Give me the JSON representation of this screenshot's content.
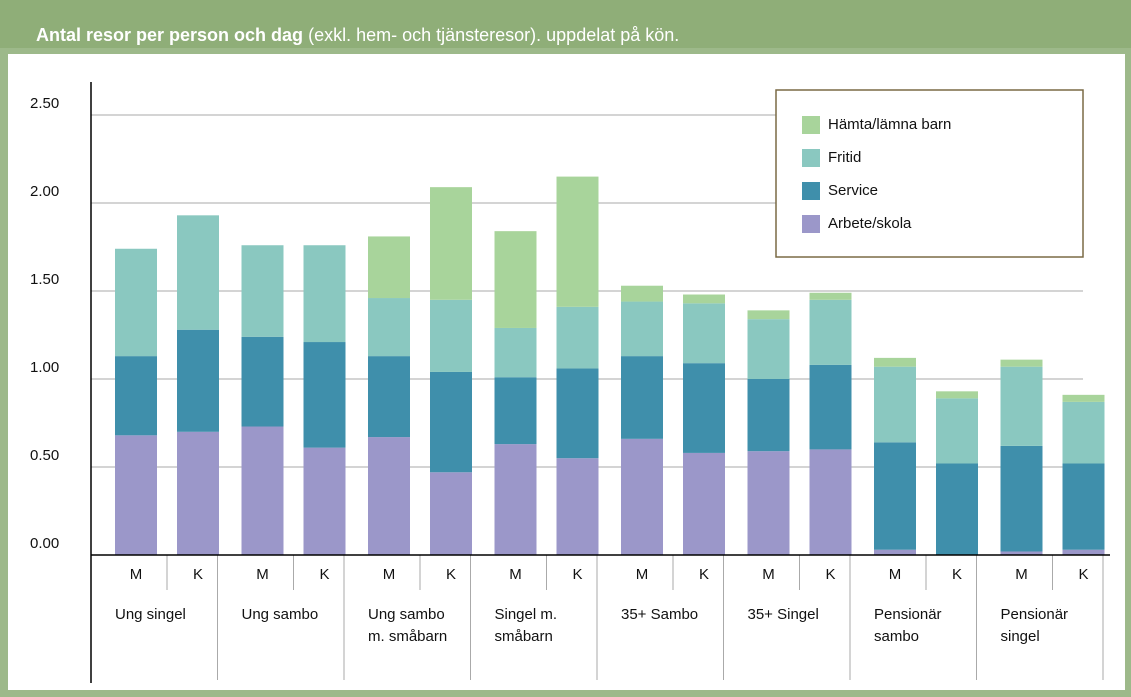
{
  "chart_data": {
    "type": "stacked_bar",
    "title": "Antal resor per person och dag",
    "subtitle": "(exkl. hem- och tjänsteresor). uppdelat på kön.",
    "categories": [
      "M",
      "K",
      "M",
      "K",
      "M",
      "K",
      "M",
      "K",
      "M",
      "K",
      "M",
      "K",
      "M",
      "K",
      "M",
      "K"
    ],
    "groups": [
      [
        "Ung singel"
      ],
      [
        "Ung sambo"
      ],
      [
        "Ung sambo",
        "m. småbarn"
      ],
      [
        "Singel m.",
        "småbarn"
      ],
      [
        "35+ Sambo"
      ],
      [
        "35+ Singel"
      ],
      [
        "Pensionär",
        "sambo"
      ],
      [
        "Pensionär",
        "singel"
      ]
    ],
    "ylim": [
      0,
      2.75
    ],
    "yticks": [
      {
        "value": 0,
        "label": "0.00"
      },
      {
        "value": 0.5,
        "label": "0.50"
      },
      {
        "value": 1,
        "label": "1.00"
      },
      {
        "value": 1.5,
        "label": "1.50"
      },
      {
        "value": 2,
        "label": "2.00"
      },
      {
        "value": 2.5,
        "label": "2.50"
      }
    ],
    "grid": true,
    "legend": "upper right",
    "series": [
      {
        "name": "Arbete/skola",
        "color": "#9b97c9",
        "values": [
          0.68,
          0.7,
          0.73,
          0.61,
          0.67,
          0.47,
          0.63,
          0.55,
          0.66,
          0.58,
          0.59,
          0.6,
          0.03,
          0,
          0.02,
          0.03
        ]
      },
      {
        "name": "Service",
        "color": "#3f8fab",
        "values": [
          0.45,
          0.58,
          0.51,
          0.6,
          0.46,
          0.57,
          0.38,
          0.51,
          0.47,
          0.51,
          0.41,
          0.48,
          0.61,
          0.52,
          0.6,
          0.49
        ]
      },
      {
        "name": "Fritid",
        "color": "#8ac8c0",
        "values": [
          0.61,
          0.65,
          0.52,
          0.55,
          0.33,
          0.41,
          0.28,
          0.35,
          0.31,
          0.34,
          0.34,
          0.37,
          0.43,
          0.37,
          0.45,
          0.35
        ]
      },
      {
        "name": "Hämta/lämna barn",
        "color": "#a8d49b",
        "values": [
          0,
          0,
          0,
          0,
          0.35,
          0.64,
          0.55,
          0.74,
          0.09,
          0.05,
          0.05,
          0.04,
          0.05,
          0.04,
          0.04,
          0.04
        ]
      }
    ]
  }
}
